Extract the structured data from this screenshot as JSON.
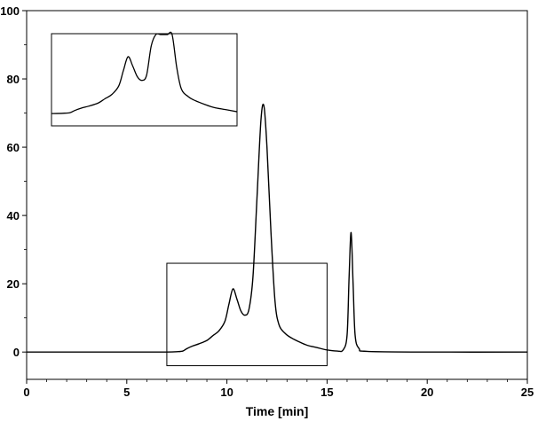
{
  "chart_data": {
    "type": "line",
    "title": "",
    "xlabel": "Time [min]",
    "ylabel": "",
    "xlim": [
      0,
      25
    ],
    "ylim": [
      -8,
      100
    ],
    "xticks": [
      0,
      5,
      10,
      15,
      20,
      25
    ],
    "yticks": [
      0,
      20,
      40,
      60,
      80,
      100
    ],
    "grid": false,
    "legend": "none",
    "line_color": "#000000",
    "series": [
      {
        "x": [
          0,
          2,
          4,
          6,
          7,
          7.5,
          7.8,
          8,
          8.3,
          8.6,
          9,
          9.3,
          9.6,
          9.9,
          10.1,
          10.3,
          10.5,
          10.7,
          10.9,
          11.1,
          11.3,
          11.5,
          11.7,
          11.85,
          12.0,
          12.2,
          12.4,
          12.6,
          12.9,
          13.2,
          13.6,
          14.0,
          14.5,
          15.0,
          15.5,
          15.8,
          16.0,
          16.1,
          16.2,
          16.3,
          16.4,
          16.6,
          17,
          20,
          25
        ],
        "y": [
          0,
          0,
          0,
          0,
          0,
          0.1,
          0.3,
          1.0,
          1.8,
          2.4,
          3.4,
          4.8,
          6.2,
          9,
          14,
          18.5,
          15.5,
          12,
          10.8,
          12.5,
          22,
          45,
          68,
          72,
          60,
          35,
          15,
          8,
          5.5,
          4.2,
          3,
          2,
          1.3,
          0.6,
          0.3,
          0.6,
          5,
          22,
          35,
          20,
          5,
          1,
          0.2,
          0,
          0
        ]
      }
    ],
    "annotations": [
      {
        "type": "zoom-box",
        "x_range": [
          7,
          15
        ],
        "y_range": [
          -4,
          26
        ]
      }
    ],
    "inset": {
      "type": "line",
      "source_x_range": [
        7,
        15
      ],
      "source_y_range": [
        -4,
        26
      ],
      "clipped_at_top": true
    }
  }
}
